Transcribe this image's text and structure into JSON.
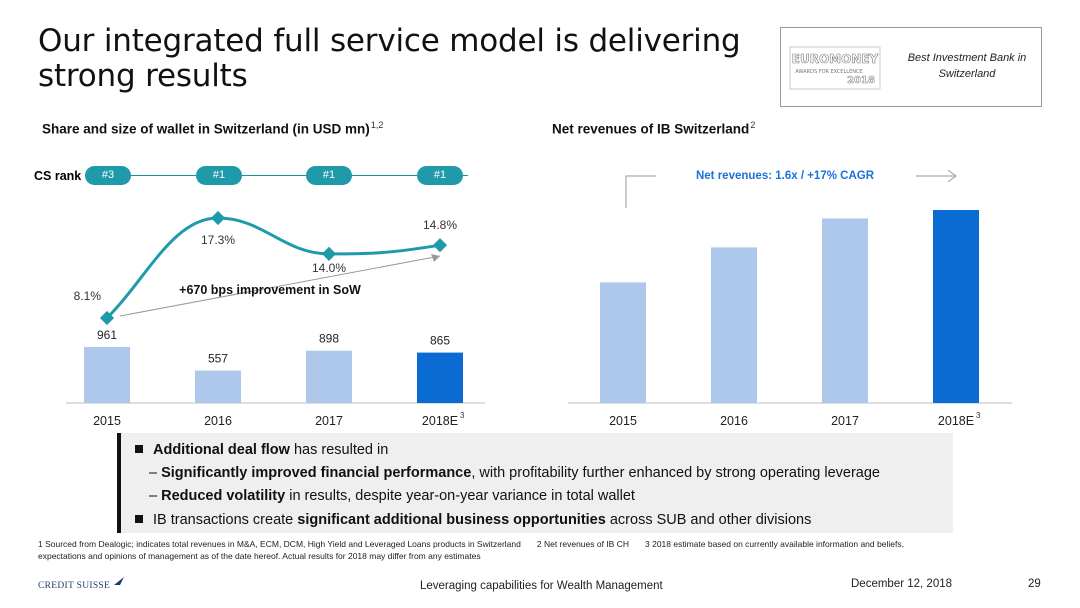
{
  "slide": {
    "title": "Our integrated full service model is delivering strong results",
    "award": {
      "logo_text": "EUROMONEY",
      "logo_sub": "AWARDS FOR EXCELLENCE",
      "logo_year": "2018",
      "text": "Best Investment Bank in Switzerland"
    }
  },
  "left": {
    "title": "Share and size of wallet in Switzerland (in USD mn)",
    "title_sup": "1,2",
    "rank_label": "CS rank",
    "ranks": [
      "#3",
      "#1",
      "#1",
      "#1"
    ],
    "sow_note": "+670 bps improvement in SoW"
  },
  "right": {
    "title": "Net revenues of IB Switzerland",
    "title_sup": "2",
    "cagr_label": "Net revenues: 1.6x / +17% CAGR"
  },
  "chart_data": [
    {
      "type": "bar",
      "categories": [
        "2015",
        "2016",
        "2017",
        "2018E"
      ],
      "category_sup": [
        "",
        "",
        "",
        "3"
      ],
      "series": [
        {
          "values": [
            961,
            557,
            898,
            865
          ],
          "labels": [
            "961",
            "557",
            "898",
            "865"
          ],
          "colors": [
            "#adc8ea",
            "#adc8ea",
            "#adc8ea",
            "#0a6bd3"
          ]
        }
      ],
      "line_series": {
        "values": [
          8.1,
          17.3,
          14.0,
          14.8
        ],
        "labels": [
          "8.1%",
          "17.3%",
          "14.0%",
          "14.8%"
        ],
        "color": "#1f9aab"
      },
      "ylim": [
        0,
        1250
      ]
    },
    {
      "type": "bar",
      "categories": [
        "2015",
        "2016",
        "2017",
        "2018E"
      ],
      "category_sup": [
        "",
        "",
        "",
        "3"
      ],
      "series": [
        {
          "values": [
            1.0,
            1.29,
            1.53,
            1.6
          ],
          "colors": [
            "#adc8ea",
            "#adc8ea",
            "#adc8ea",
            "#0a6bd3"
          ]
        }
      ],
      "ylim": [
        0,
        1.6
      ]
    }
  ],
  "bullets": [
    {
      "type": "bullet",
      "parts": [
        {
          "b": true,
          "t": "Additional deal flow"
        },
        {
          "b": false,
          "t": " has resulted in"
        }
      ]
    },
    {
      "type": "dash",
      "parts": [
        {
          "b": true,
          "t": "Significantly improved financial performance"
        },
        {
          "b": false,
          "t": ", with profitability further enhanced by strong operating leverage"
        }
      ]
    },
    {
      "type": "dash",
      "parts": [
        {
          "b": true,
          "t": "Reduced volatility"
        },
        {
          "b": false,
          "t": " in results, despite year-on-year variance in total wallet"
        }
      ]
    },
    {
      "type": "bullet",
      "parts": [
        {
          "b": false,
          "t": "IB transactions create "
        },
        {
          "b": true,
          "t": "significant additional business opportunities"
        },
        {
          "b": false,
          "t": " across SUB and other divisions"
        }
      ]
    }
  ],
  "footnotes": {
    "fn1": "1 Sourced from Dealogic; indicates total revenues in M&A, ECM, DCM, High Yield and Leveraged Loans products in Switzerland",
    "fn2": "2 Net revenues of IB CH",
    "fn3_line1": "3 2018 estimate based on currently available information and beliefs,",
    "fn3_line2": "expectations and opinions of management as of the date hereof. Actual results for 2018 may differ from any estimates"
  },
  "footer": {
    "logo": "CREDIT SUISSE",
    "center": "Leveraging capabilities for Wealth Management",
    "date": "December 12, 2018",
    "page": "29"
  },
  "colors": {
    "light_bar": "#adc8ea",
    "dark_bar": "#0a6bd3",
    "teal": "#1f9aab",
    "accent_blue": "#1a73d9"
  }
}
